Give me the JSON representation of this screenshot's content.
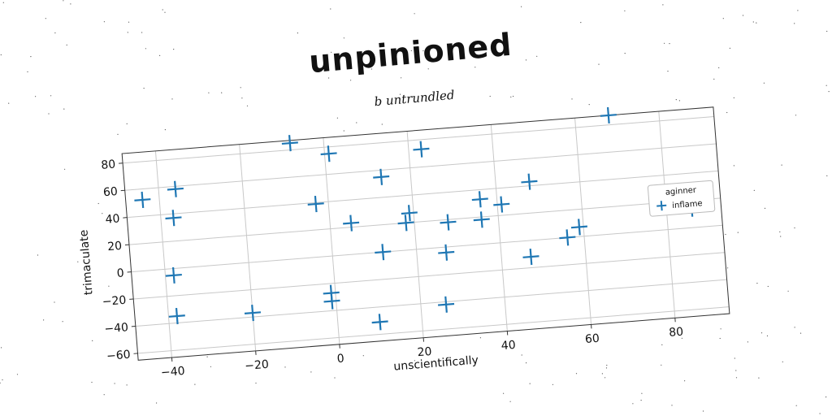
{
  "chart_data": {
    "type": "scatter",
    "title": "unpinioned",
    "subtitle": "b untrundled",
    "xlabel": "unscientifically",
    "ylabel": "trimaculate",
    "xlim": [
      -48,
      93
    ],
    "ylim": [
      -65,
      87
    ],
    "xticks": [
      -40,
      -20,
      0,
      20,
      40,
      60,
      80
    ],
    "yticks": [
      -60,
      -40,
      -20,
      0,
      20,
      40,
      60,
      80
    ],
    "grid": true,
    "legend": {
      "title": "aginner",
      "placement": "right"
    },
    "series": [
      {
        "name": "inflame",
        "color": "#1f77b4",
        "marker": "+",
        "points": [
          [
            -44,
            52
          ],
          [
            -36,
            58
          ],
          [
            -37,
            37
          ],
          [
            -38,
            -5
          ],
          [
            -38,
            -35
          ],
          [
            -20,
            -37
          ],
          [
            -8,
            85
          ],
          [
            -3,
            39
          ],
          [
            1,
            75
          ],
          [
            -1,
            -27
          ],
          [
            -1,
            -33
          ],
          [
            5,
            23
          ],
          [
            13,
            55
          ],
          [
            12,
            0
          ],
          [
            10,
            -51
          ],
          [
            23,
            73
          ],
          [
            19,
            27
          ],
          [
            18,
            20
          ],
          [
            28,
            18
          ],
          [
            27,
            -4
          ],
          [
            26,
            -42
          ],
          [
            36,
            33
          ],
          [
            36,
            18
          ],
          [
            41,
            28
          ],
          [
            48,
            43
          ],
          [
            47,
            -12
          ],
          [
            56,
            0
          ],
          [
            59,
            7
          ],
          [
            68,
            87
          ],
          [
            86,
            14
          ]
        ]
      }
    ]
  }
}
